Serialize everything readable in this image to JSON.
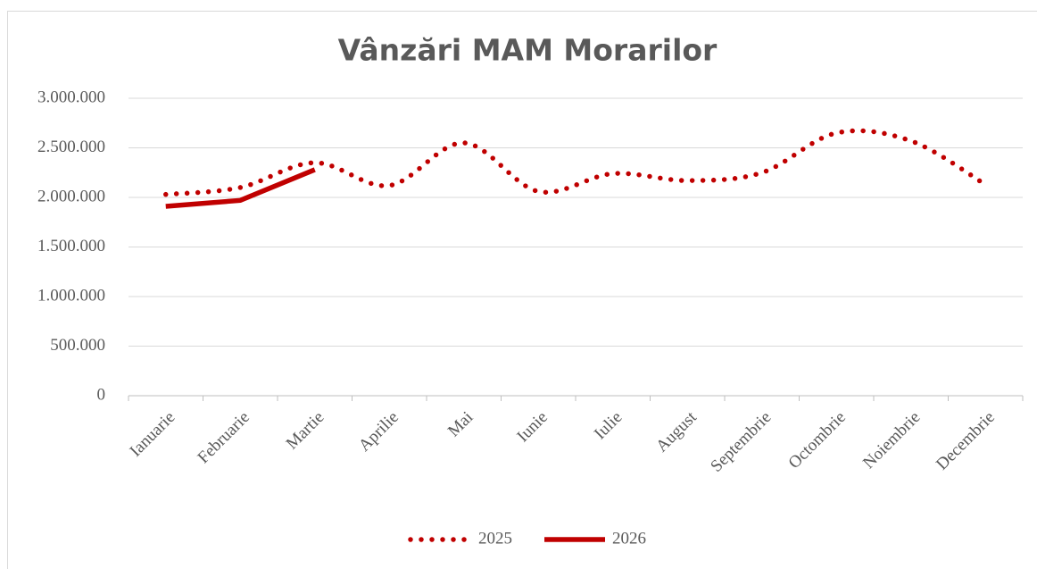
{
  "chart_data": {
    "type": "line",
    "title": "Vânzări MAM Morarilor",
    "categories": [
      "Ianuarie",
      "Februarie",
      "Martie",
      "Aprilie",
      "Mai",
      "Iunie",
      "Iulie",
      "August",
      "Septembrie",
      "Octombrie",
      "Noiembrie",
      "Decembrie"
    ],
    "series": [
      {
        "name": "2025",
        "color": "#c00000",
        "style": "dotted",
        "values": [
          2030000,
          2100000,
          2350000,
          2120000,
          2550000,
          2060000,
          2240000,
          2170000,
          2250000,
          2650000,
          2570000,
          2130000
        ]
      },
      {
        "name": "2026",
        "color": "#c00000",
        "style": "solid",
        "values": [
          1910000,
          1970000,
          2280000,
          null,
          null,
          null,
          null,
          null,
          null,
          null,
          null,
          null
        ]
      }
    ],
    "ylim": [
      0,
      3000000
    ],
    "yticks": [
      0,
      {
        "value": 500000,
        "label": "500.000"
      },
      {
        "value": 1000000,
        "label": "1.000.000"
      },
      {
        "value": 1500000,
        "label": "1.500.000"
      },
      {
        "value": 2000000,
        "label": "2.000.000"
      },
      {
        "value": 2500000,
        "label": "2.500.000"
      },
      {
        "value": 3000000,
        "label": "3.000.000"
      }
    ],
    "grid": true,
    "legend": "bottom"
  }
}
